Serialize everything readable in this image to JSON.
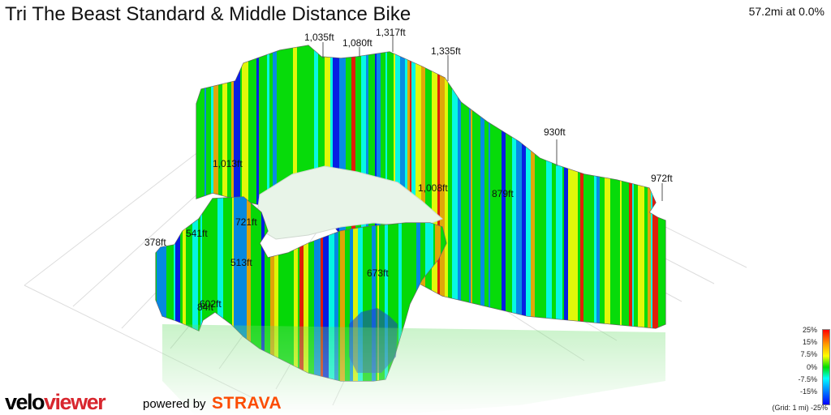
{
  "header": {
    "title": "Tri The Beast Standard & Middle Distance Bike",
    "distance_readout": "57.2mi at 0.0%"
  },
  "legend": {
    "scale_labels": [
      "25%",
      "15%",
      "7.5%",
      "0%",
      "-7.5%",
      "-15%",
      "-25%"
    ],
    "grid_note": "(Grid: 1 mi)",
    "colors": [
      "#ff0000",
      "#ffa000",
      "#ffff00",
      "#00dd00",
      "#00ffff",
      "#0080ff",
      "#0000ff"
    ]
  },
  "branding": {
    "logo_part1": "velo",
    "logo_part2": "viewer",
    "powered_by": "powered by",
    "strava": "STRAVA",
    "strava_color": "#fc4c02"
  },
  "chart_data": {
    "type": "area",
    "title": "Tri The Beast Standard & Middle Distance Bike",
    "elevation_labels": [
      "1,035ft",
      "1,080ft",
      "1,317ft",
      "1,335ft",
      "930ft",
      "972ft",
      "879ft",
      "1,008ft",
      "1,013ft",
      "721ft",
      "541ft",
      "378ft",
      "513ft",
      "673ft",
      "602ft",
      "84ft"
    ],
    "gradient_scale": {
      "min": -25,
      "max": 25,
      "unit": "%"
    },
    "grid": true,
    "grid_unit": "1 mi"
  }
}
